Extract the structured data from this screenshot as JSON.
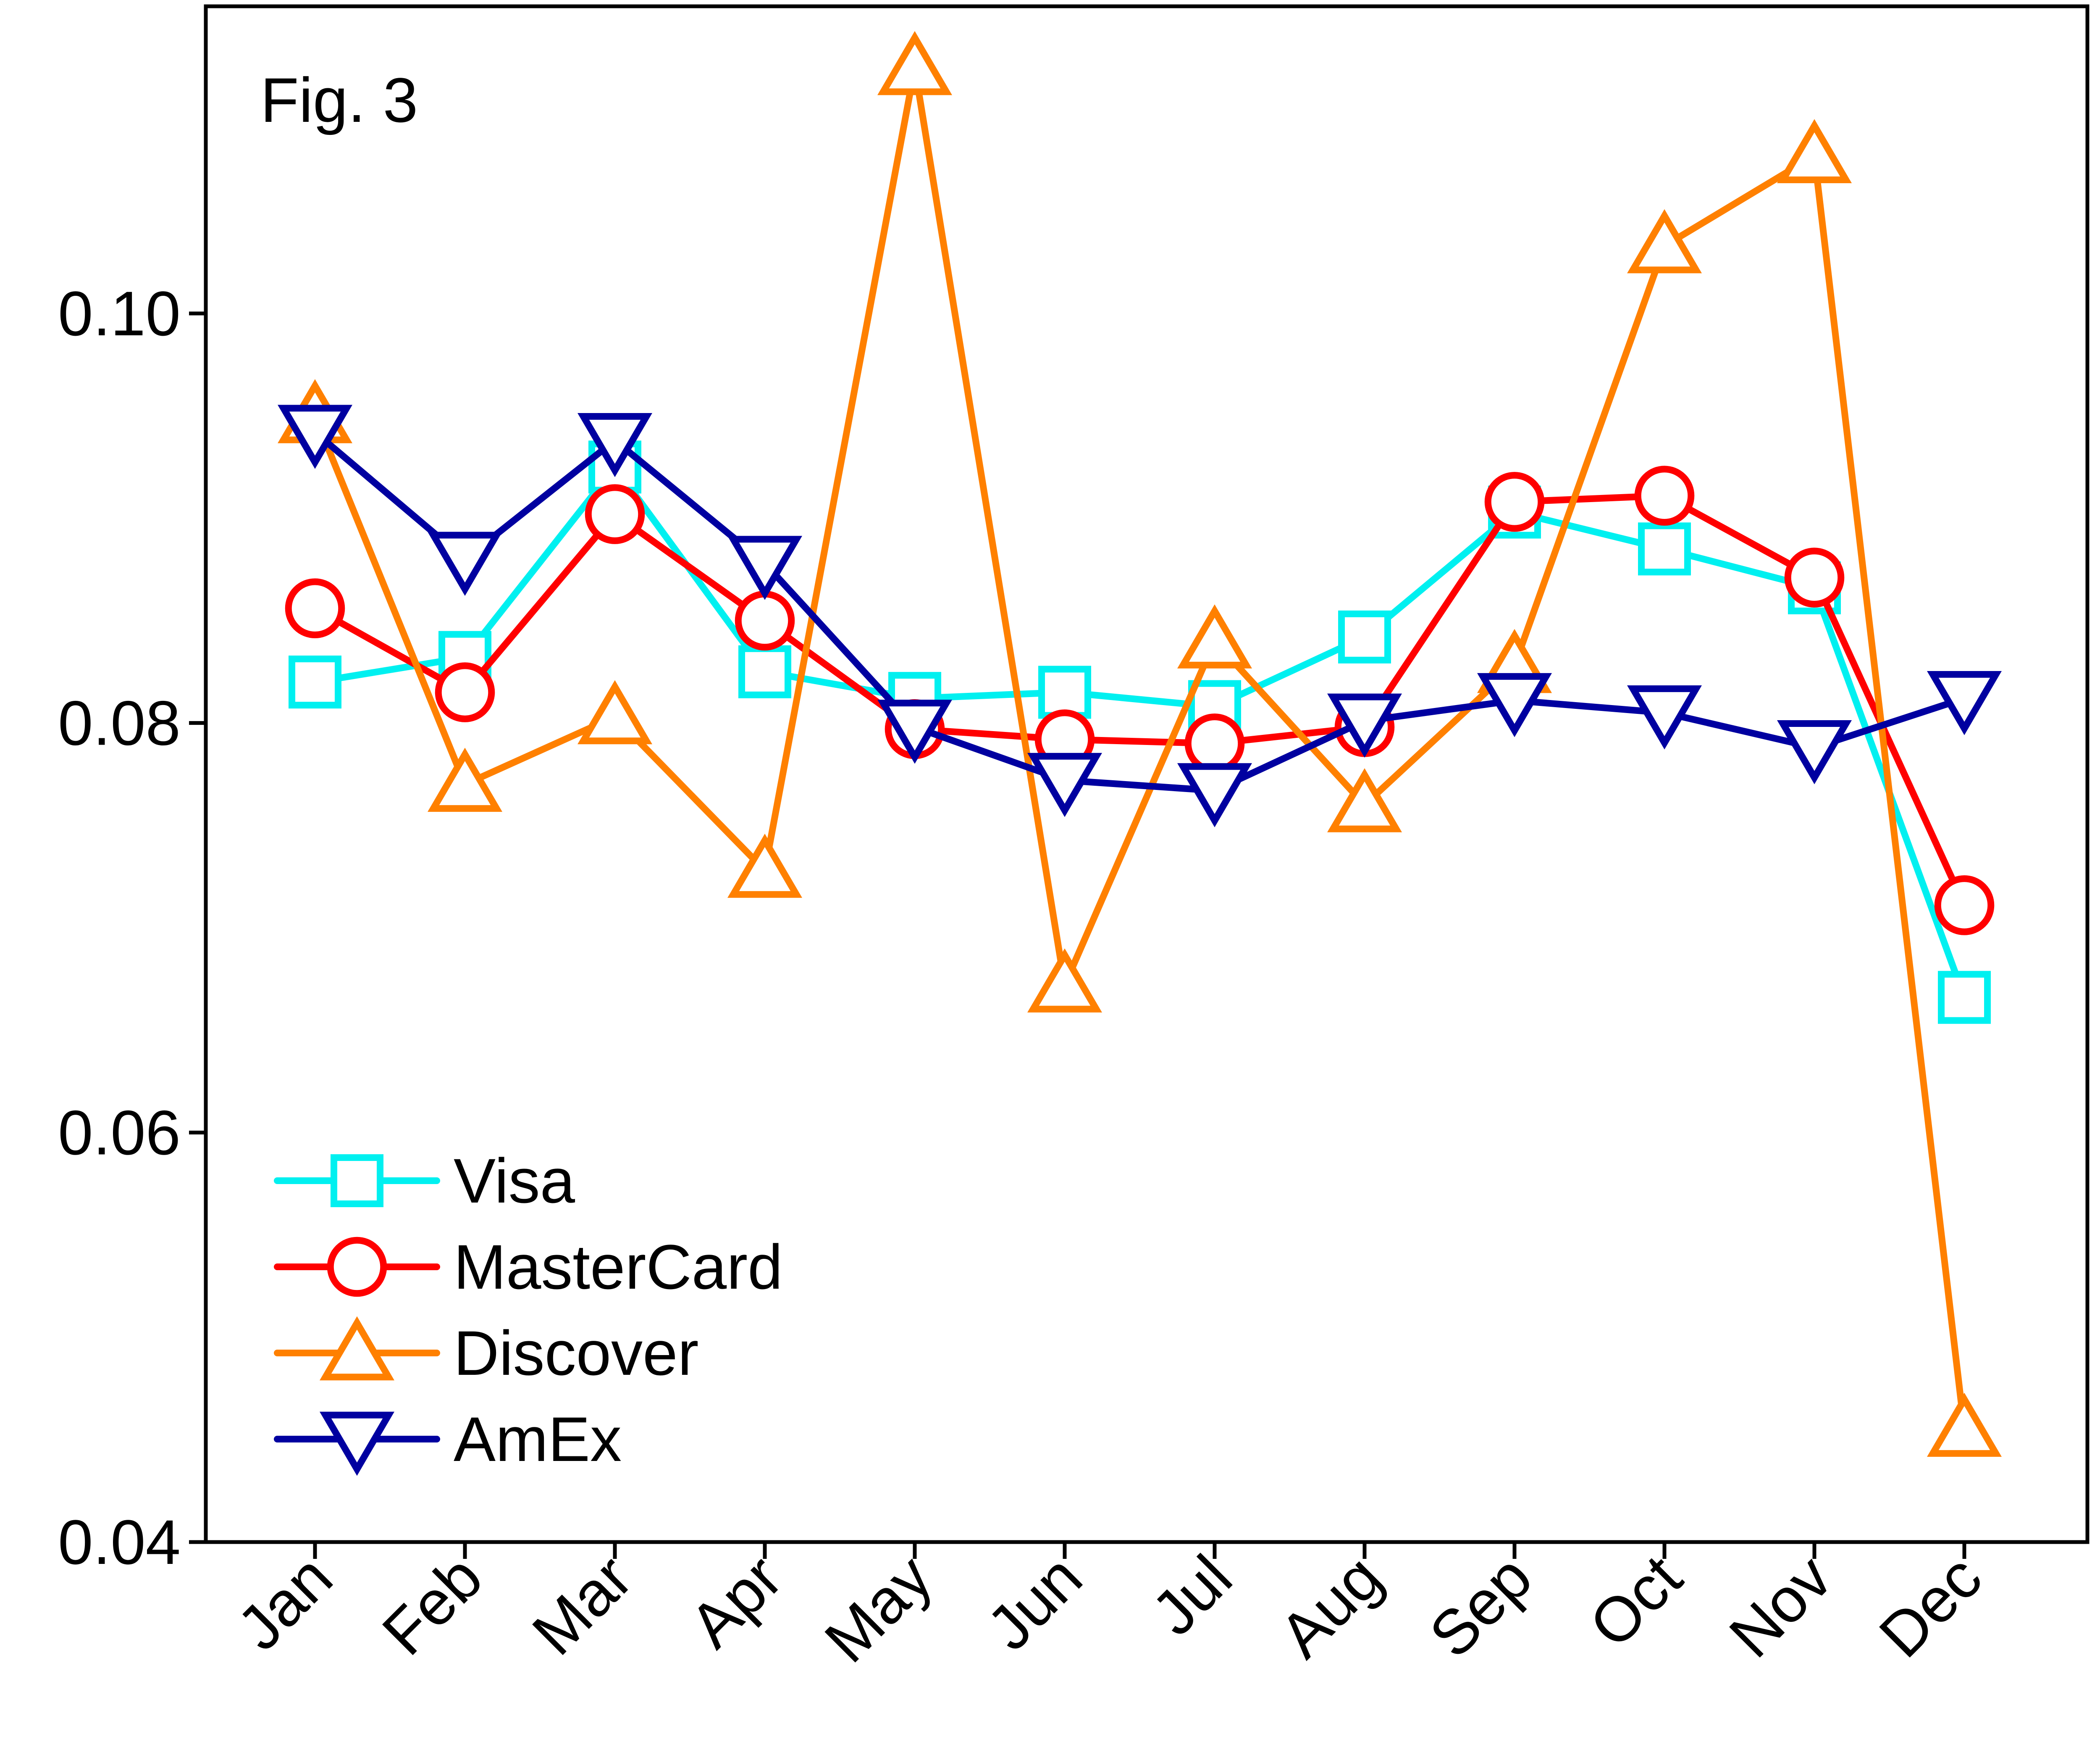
{
  "figure_label": "Fig. 3",
  "chart_data": {
    "type": "line",
    "title": "",
    "xlabel": "",
    "ylabel": "",
    "categories": [
      "Jan",
      "Feb",
      "Mar",
      "Apr",
      "May",
      "Jun",
      "Jul",
      "Aug",
      "Sep",
      "Oct",
      "Nov",
      "Dec"
    ],
    "ylim": [
      0.04,
      0.115
    ],
    "yticks": [
      0.04,
      0.06,
      0.08,
      0.1
    ],
    "ytick_labels": [
      "0.04",
      "0.06",
      "0.08",
      "0.10"
    ],
    "grid": false,
    "legend_position": "bottom-left",
    "series": [
      {
        "name": "Visa",
        "color": "#00f0f0",
        "marker": "square",
        "values": [
          0.082,
          0.0832,
          0.0925,
          0.0825,
          0.0812,
          0.0815,
          0.0808,
          0.0842,
          0.0903,
          0.0885,
          0.0866,
          0.0666
        ]
      },
      {
        "name": "MasterCard",
        "color": "#ff0000",
        "marker": "circle",
        "values": [
          0.0856,
          0.0815,
          0.0902,
          0.085,
          0.0797,
          0.0792,
          0.079,
          0.0798,
          0.0908,
          0.0911,
          0.0871,
          0.0711
        ]
      },
      {
        "name": "Discover",
        "color": "#ff8000",
        "marker": "triangle-up",
        "values": [
          0.095,
          0.077,
          0.0803,
          0.0728,
          0.112,
          0.0672,
          0.084,
          0.076,
          0.0828,
          0.1033,
          0.1077,
          0.0455
        ]
      },
      {
        "name": "AmEx",
        "color": "#0000a0",
        "marker": "triangle-down",
        "values": [
          0.0942,
          0.088,
          0.0938,
          0.0878,
          0.0798,
          0.0772,
          0.0767,
          0.0801,
          0.0811,
          0.0805,
          0.0788,
          0.0812
        ]
      }
    ]
  }
}
